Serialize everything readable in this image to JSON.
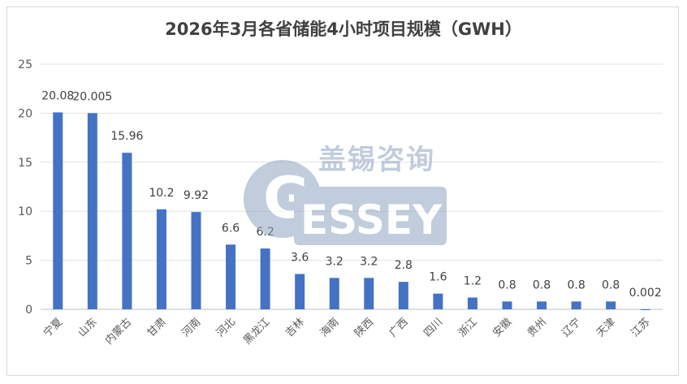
{
  "chart_data": {
    "type": "bar",
    "title": "2026年3月各省储能4小时项目规模（GWH）",
    "categories": [
      "宁夏",
      "山东",
      "内蒙古",
      "甘肃",
      "河南",
      "河北",
      "黑龙江",
      "吉林",
      "海南",
      "陕西",
      "广西",
      "四川",
      "浙江",
      "安徽",
      "贵州",
      "辽宁",
      "天津",
      "江苏"
    ],
    "values": [
      20.08,
      20.005,
      15.96,
      10.2,
      9.92,
      6.6,
      6.2,
      3.6,
      3.2,
      3.2,
      2.8,
      1.6,
      1.2,
      0.8,
      0.8,
      0.8,
      0.8,
      0.002
    ],
    "data_labels": [
      "20.08",
      "20.005",
      "15.96",
      "10.2",
      "9.92",
      "6.6",
      "6.2",
      "3.6",
      "3.2",
      "3.2",
      "2.8",
      "1.6",
      "1.2",
      "0.8",
      "0.8",
      "0.8",
      "0.8",
      "0.002"
    ],
    "yticks": [
      "0",
      "5",
      "10",
      "15",
      "20",
      "25"
    ],
    "ylim": [
      0,
      25
    ],
    "grid": true,
    "legend": "none",
    "bar_color": "#4472c4"
  },
  "watermark": {
    "cn": "盖锡咨询",
    "en": "ESSEY",
    "letter": "G"
  }
}
